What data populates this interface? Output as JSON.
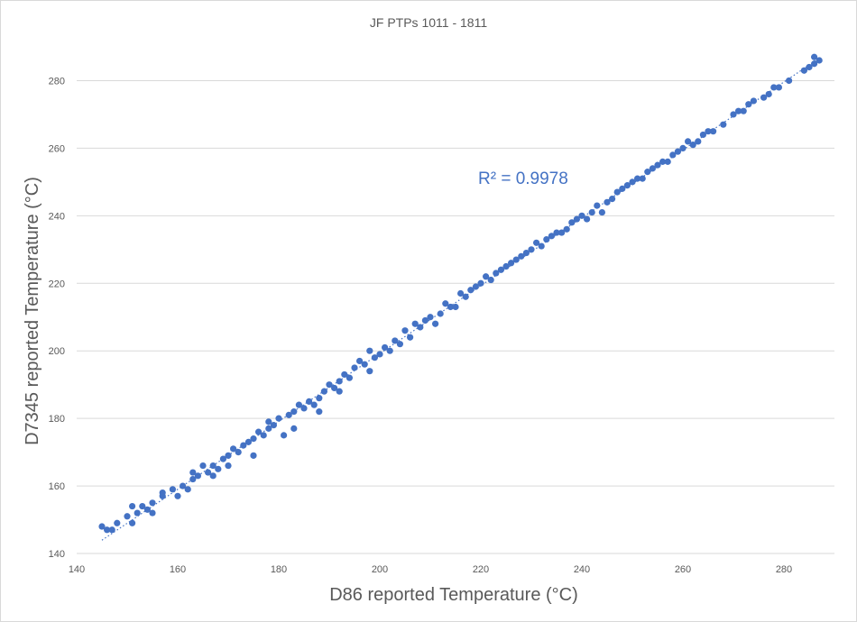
{
  "chart_data": {
    "type": "scatter",
    "title": "JF PTPs 1011 - 1811",
    "xlabel": "D86  reported Temperature (°C)",
    "ylabel": "D7345  reported Temperature (°C)",
    "xlim": [
      140,
      290
    ],
    "ylim": [
      140,
      290
    ],
    "x_ticks": [
      "140",
      "160",
      "180",
      "200",
      "220",
      "240",
      "260",
      "280"
    ],
    "y_ticks": [
      "140",
      "160",
      "180",
      "200",
      "220",
      "240",
      "260",
      "280"
    ],
    "grid": "horizontal",
    "trendline": {
      "type": "linear",
      "style": "dotted",
      "r_squared_label": "R² = 0.9978"
    },
    "marker_color": "#4472c4",
    "series": [
      {
        "points": [
          [
            145,
            148
          ],
          [
            146,
            147
          ],
          [
            147,
            147
          ],
          [
            148,
            149
          ],
          [
            150,
            151
          ],
          [
            151,
            149
          ],
          [
            151,
            154
          ],
          [
            152,
            152
          ],
          [
            153,
            154
          ],
          [
            154,
            153
          ],
          [
            155,
            152
          ],
          [
            155,
            155
          ],
          [
            157,
            157
          ],
          [
            157,
            158
          ],
          [
            159,
            159
          ],
          [
            160,
            157
          ],
          [
            161,
            160
          ],
          [
            162,
            159
          ],
          [
            163,
            164
          ],
          [
            163,
            162
          ],
          [
            164,
            163
          ],
          [
            165,
            166
          ],
          [
            166,
            164
          ],
          [
            167,
            163
          ],
          [
            167,
            166
          ],
          [
            168,
            165
          ],
          [
            169,
            168
          ],
          [
            170,
            166
          ],
          [
            170,
            169
          ],
          [
            171,
            171
          ],
          [
            172,
            170
          ],
          [
            173,
            172
          ],
          [
            174,
            173
          ],
          [
            175,
            174
          ],
          [
            175,
            169
          ],
          [
            176,
            176
          ],
          [
            177,
            175
          ],
          [
            178,
            177
          ],
          [
            178,
            179
          ],
          [
            179,
            178
          ],
          [
            180,
            180
          ],
          [
            181,
            175
          ],
          [
            182,
            181
          ],
          [
            183,
            177
          ],
          [
            183,
            182
          ],
          [
            184,
            184
          ],
          [
            185,
            183
          ],
          [
            186,
            185
          ],
          [
            187,
            184
          ],
          [
            188,
            186
          ],
          [
            188,
            182
          ],
          [
            189,
            188
          ],
          [
            190,
            190
          ],
          [
            191,
            189
          ],
          [
            192,
            191
          ],
          [
            192,
            188
          ],
          [
            193,
            193
          ],
          [
            194,
            192
          ],
          [
            195,
            195
          ],
          [
            196,
            197
          ],
          [
            197,
            196
          ],
          [
            198,
            200
          ],
          [
            198,
            194
          ],
          [
            199,
            198
          ],
          [
            200,
            199
          ],
          [
            201,
            201
          ],
          [
            202,
            200
          ],
          [
            203,
            203
          ],
          [
            204,
            202
          ],
          [
            205,
            206
          ],
          [
            206,
            204
          ],
          [
            207,
            208
          ],
          [
            208,
            207
          ],
          [
            209,
            209
          ],
          [
            210,
            210
          ],
          [
            211,
            208
          ],
          [
            212,
            211
          ],
          [
            213,
            214
          ],
          [
            214,
            213
          ],
          [
            215,
            213
          ],
          [
            216,
            217
          ],
          [
            217,
            216
          ],
          [
            218,
            218
          ],
          [
            219,
            219
          ],
          [
            220,
            220
          ],
          [
            221,
            222
          ],
          [
            222,
            221
          ],
          [
            223,
            223
          ],
          [
            224,
            224
          ],
          [
            225,
            225
          ],
          [
            226,
            226
          ],
          [
            227,
            227
          ],
          [
            228,
            228
          ],
          [
            229,
            229
          ],
          [
            230,
            230
          ],
          [
            231,
            232
          ],
          [
            232,
            231
          ],
          [
            233,
            233
          ],
          [
            234,
            234
          ],
          [
            235,
            235
          ],
          [
            236,
            235
          ],
          [
            237,
            236
          ],
          [
            238,
            238
          ],
          [
            239,
            239
          ],
          [
            240,
            240
          ],
          [
            241,
            239
          ],
          [
            242,
            241
          ],
          [
            243,
            243
          ],
          [
            244,
            241
          ],
          [
            245,
            244
          ],
          [
            246,
            245
          ],
          [
            247,
            247
          ],
          [
            248,
            248
          ],
          [
            249,
            249
          ],
          [
            250,
            250
          ],
          [
            251,
            251
          ],
          [
            252,
            251
          ],
          [
            253,
            253
          ],
          [
            254,
            254
          ],
          [
            255,
            255
          ],
          [
            256,
            256
          ],
          [
            257,
            256
          ],
          [
            258,
            258
          ],
          [
            259,
            259
          ],
          [
            260,
            260
          ],
          [
            261,
            262
          ],
          [
            262,
            261
          ],
          [
            263,
            262
          ],
          [
            264,
            264
          ],
          [
            265,
            265
          ],
          [
            266,
            265
          ],
          [
            268,
            267
          ],
          [
            270,
            270
          ],
          [
            271,
            271
          ],
          [
            272,
            271
          ],
          [
            273,
            273
          ],
          [
            274,
            274
          ],
          [
            276,
            275
          ],
          [
            277,
            276
          ],
          [
            278,
            278
          ],
          [
            279,
            278
          ],
          [
            281,
            280
          ],
          [
            284,
            283
          ],
          [
            285,
            284
          ],
          [
            286,
            285
          ],
          [
            287,
            286
          ],
          [
            286,
            287
          ]
        ]
      }
    ]
  }
}
